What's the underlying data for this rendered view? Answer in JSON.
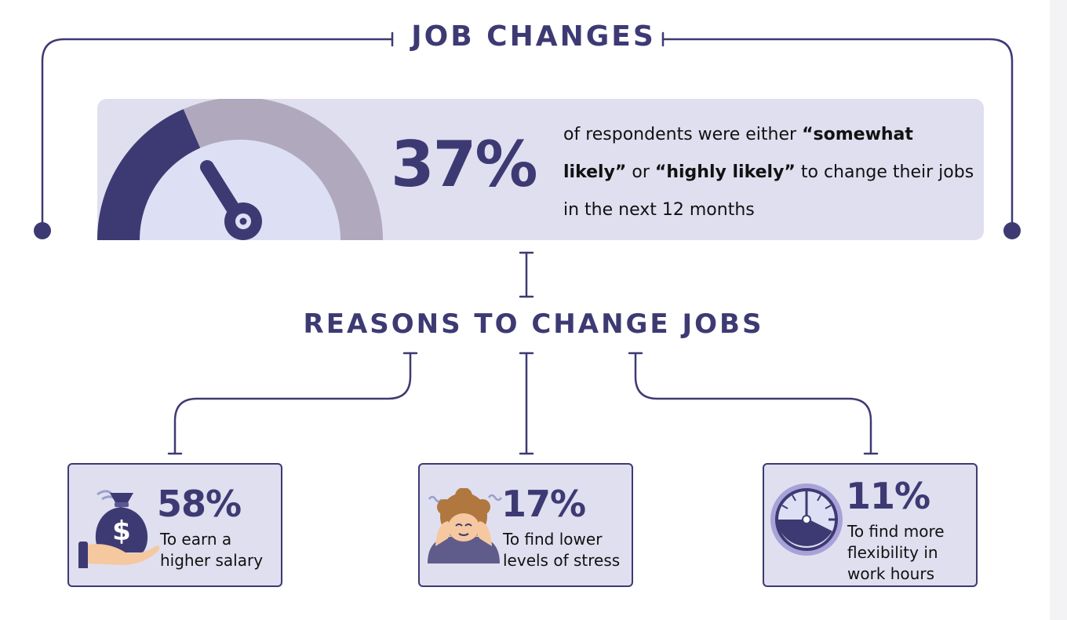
{
  "title": "JOB CHANGES",
  "hero": {
    "percent": "37%",
    "gauge_fraction": 0.37,
    "text_part1": "of respondents were either ",
    "text_bold1": "“somewhat likely”",
    "text_part2": " or ",
    "text_bold2": "“highly likely”",
    "text_part3": " to change their jobs in the next 12 months"
  },
  "subtitle": "REASONS TO CHANGE JOBS",
  "reasons": [
    {
      "percent": "58%",
      "line1": "To earn a",
      "line2": "higher salary",
      "line3": "",
      "icon": "money-bag-icon"
    },
    {
      "percent": "17%",
      "line1": "To find lower",
      "line2": "levels of stress",
      "line3": "",
      "icon": "stressed-person-icon"
    },
    {
      "percent": "11%",
      "line1": "To find more",
      "line2": "flexibility in",
      "line3": "work hours",
      "icon": "clock-icon"
    }
  ],
  "colors": {
    "navy": "#3d3a73",
    "panel": "#dfdff0",
    "gauge_track": "#b0a9bd",
    "gauge_inner": "#dde0f4"
  }
}
